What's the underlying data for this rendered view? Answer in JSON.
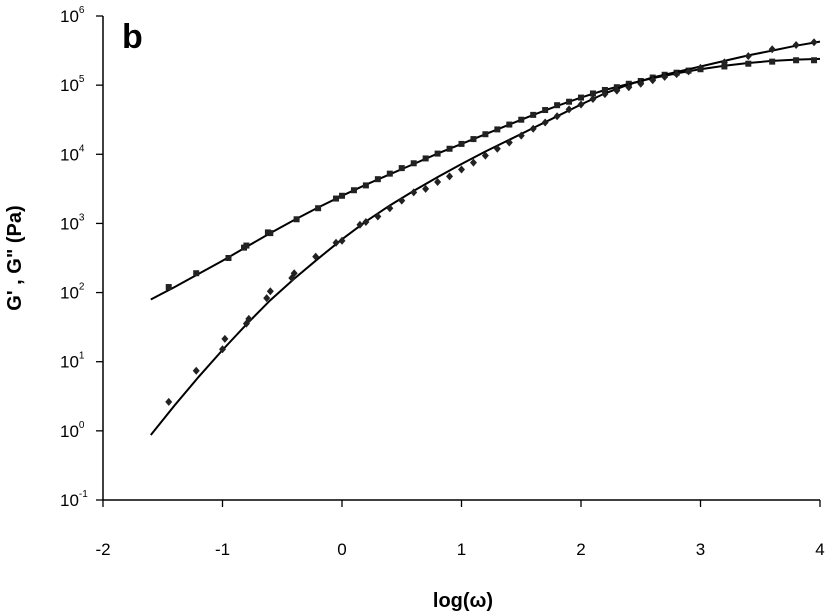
{
  "chart_data": {
    "type": "scatter",
    "panel_label": "b",
    "xlabel": "log(ω)",
    "ylabel": "G' , G\" (Pa)",
    "xlim": [
      -2,
      4
    ],
    "ylim": [
      -1,
      6
    ],
    "y_scale": "log",
    "x_ticks": [
      "-2",
      "-1",
      "0",
      "1",
      "2",
      "3",
      "4"
    ],
    "y_ticks": [
      {
        "base": "10",
        "exp": "-1"
      },
      {
        "base": "10",
        "exp": "0"
      },
      {
        "base": "10",
        "exp": "1"
      },
      {
        "base": "10",
        "exp": "2"
      },
      {
        "base": "10",
        "exp": "3"
      },
      {
        "base": "10",
        "exp": "4"
      },
      {
        "base": "10",
        "exp": "5"
      },
      {
        "base": "10",
        "exp": "6"
      }
    ],
    "grid": false,
    "series": [
      {
        "marker": "square",
        "points": [
          [
            -1.45,
            2.08
          ],
          [
            -1.22,
            2.28
          ],
          [
            -0.95,
            2.5
          ],
          [
            -0.82,
            2.65
          ],
          [
            -0.8,
            2.68
          ],
          [
            -0.62,
            2.87
          ],
          [
            -0.6,
            2.86
          ],
          [
            -0.38,
            3.06
          ],
          [
            -0.2,
            3.22
          ],
          [
            -0.05,
            3.36
          ],
          [
            0.0,
            3.4
          ],
          [
            0.1,
            3.48
          ],
          [
            0.2,
            3.55
          ],
          [
            0.3,
            3.64
          ],
          [
            0.4,
            3.72
          ],
          [
            0.5,
            3.8
          ],
          [
            0.6,
            3.87
          ],
          [
            0.7,
            3.94
          ],
          [
            0.8,
            4.01
          ],
          [
            0.9,
            4.08
          ],
          [
            1.0,
            4.15
          ],
          [
            1.1,
            4.22
          ],
          [
            1.2,
            4.29
          ],
          [
            1.3,
            4.36
          ],
          [
            1.4,
            4.43
          ],
          [
            1.5,
            4.5
          ],
          [
            1.6,
            4.57
          ],
          [
            1.7,
            4.64
          ],
          [
            1.8,
            4.71
          ],
          [
            1.9,
            4.76
          ],
          [
            2.0,
            4.82
          ],
          [
            2.1,
            4.88
          ],
          [
            2.2,
            4.93
          ],
          [
            2.3,
            4.97
          ],
          [
            2.4,
            5.02
          ],
          [
            2.5,
            5.06
          ],
          [
            2.6,
            5.11
          ],
          [
            2.7,
            5.15
          ],
          [
            2.8,
            5.18
          ],
          [
            2.9,
            5.21
          ],
          [
            3.0,
            5.23
          ],
          [
            3.2,
            5.27
          ],
          [
            3.4,
            5.31
          ],
          [
            3.6,
            5.34
          ],
          [
            3.8,
            5.36
          ],
          [
            3.95,
            5.36
          ]
        ],
        "fit": [
          [
            -1.6,
            1.9
          ],
          [
            -1.4,
            2.08
          ],
          [
            -1.2,
            2.27
          ],
          [
            -1.0,
            2.46
          ],
          [
            -0.8,
            2.66
          ],
          [
            -0.6,
            2.86
          ],
          [
            -0.4,
            3.05
          ],
          [
            -0.2,
            3.23
          ],
          [
            0.0,
            3.4
          ],
          [
            0.2,
            3.56
          ],
          [
            0.4,
            3.71
          ],
          [
            0.6,
            3.86
          ],
          [
            0.8,
            4.01
          ],
          [
            1.0,
            4.15
          ],
          [
            1.2,
            4.29
          ],
          [
            1.4,
            4.43
          ],
          [
            1.6,
            4.57
          ],
          [
            1.8,
            4.7
          ],
          [
            2.0,
            4.82
          ],
          [
            2.2,
            4.93
          ],
          [
            2.4,
            5.02
          ],
          [
            2.6,
            5.1
          ],
          [
            2.8,
            5.17
          ],
          [
            3.0,
            5.23
          ],
          [
            3.2,
            5.28
          ],
          [
            3.4,
            5.32
          ],
          [
            3.6,
            5.35
          ],
          [
            3.8,
            5.37
          ],
          [
            4.0,
            5.38
          ]
        ]
      },
      {
        "marker": "diamond",
        "points": [
          [
            -1.45,
            0.42
          ],
          [
            -1.22,
            0.87
          ],
          [
            -1.0,
            1.18
          ],
          [
            -0.98,
            1.33
          ],
          [
            -0.8,
            1.55
          ],
          [
            -0.78,
            1.62
          ],
          [
            -0.63,
            1.92
          ],
          [
            -0.6,
            2.02
          ],
          [
            -0.42,
            2.21
          ],
          [
            -0.4,
            2.28
          ],
          [
            -0.22,
            2.52
          ],
          [
            -0.05,
            2.72
          ],
          [
            0.0,
            2.75
          ],
          [
            0.15,
            2.98
          ],
          [
            0.2,
            3.02
          ],
          [
            0.3,
            3.1
          ],
          [
            0.4,
            3.22
          ],
          [
            0.5,
            3.33
          ],
          [
            0.6,
            3.45
          ],
          [
            0.7,
            3.5
          ],
          [
            0.8,
            3.6
          ],
          [
            0.9,
            3.68
          ],
          [
            1.0,
            3.78
          ],
          [
            1.1,
            3.88
          ],
          [
            1.2,
            3.98
          ],
          [
            1.3,
            4.08
          ],
          [
            1.4,
            4.17
          ],
          [
            1.5,
            4.27
          ],
          [
            1.6,
            4.37
          ],
          [
            1.7,
            4.46
          ],
          [
            1.8,
            4.55
          ],
          [
            1.9,
            4.65
          ],
          [
            2.0,
            4.72
          ],
          [
            2.1,
            4.8
          ],
          [
            2.2,
            4.87
          ],
          [
            2.3,
            4.92
          ],
          [
            2.4,
            4.97
          ],
          [
            2.5,
            5.02
          ],
          [
            2.6,
            5.07
          ],
          [
            2.7,
            5.12
          ],
          [
            2.8,
            5.16
          ],
          [
            2.9,
            5.2
          ],
          [
            3.0,
            5.25
          ],
          [
            3.2,
            5.33
          ],
          [
            3.4,
            5.42
          ],
          [
            3.6,
            5.52
          ],
          [
            3.8,
            5.58
          ],
          [
            3.95,
            5.62
          ]
        ],
        "fit": [
          [
            -1.6,
            -0.06
          ],
          [
            -1.4,
            0.37
          ],
          [
            -1.2,
            0.78
          ],
          [
            -1.0,
            1.17
          ],
          [
            -0.8,
            1.54
          ],
          [
            -0.6,
            1.89
          ],
          [
            -0.4,
            2.2
          ],
          [
            -0.2,
            2.49
          ],
          [
            0.0,
            2.77
          ],
          [
            0.2,
            3.03
          ],
          [
            0.4,
            3.26
          ],
          [
            0.6,
            3.47
          ],
          [
            0.8,
            3.67
          ],
          [
            1.0,
            3.86
          ],
          [
            1.2,
            4.04
          ],
          [
            1.4,
            4.21
          ],
          [
            1.6,
            4.38
          ],
          [
            1.8,
            4.55
          ],
          [
            2.0,
            4.72
          ],
          [
            2.2,
            4.88
          ],
          [
            2.4,
            5.01
          ],
          [
            2.6,
            5.11
          ],
          [
            2.8,
            5.19
          ],
          [
            3.0,
            5.27
          ],
          [
            3.2,
            5.35
          ],
          [
            3.4,
            5.43
          ],
          [
            3.6,
            5.5
          ],
          [
            3.8,
            5.57
          ],
          [
            4.0,
            5.63
          ]
        ]
      }
    ]
  }
}
